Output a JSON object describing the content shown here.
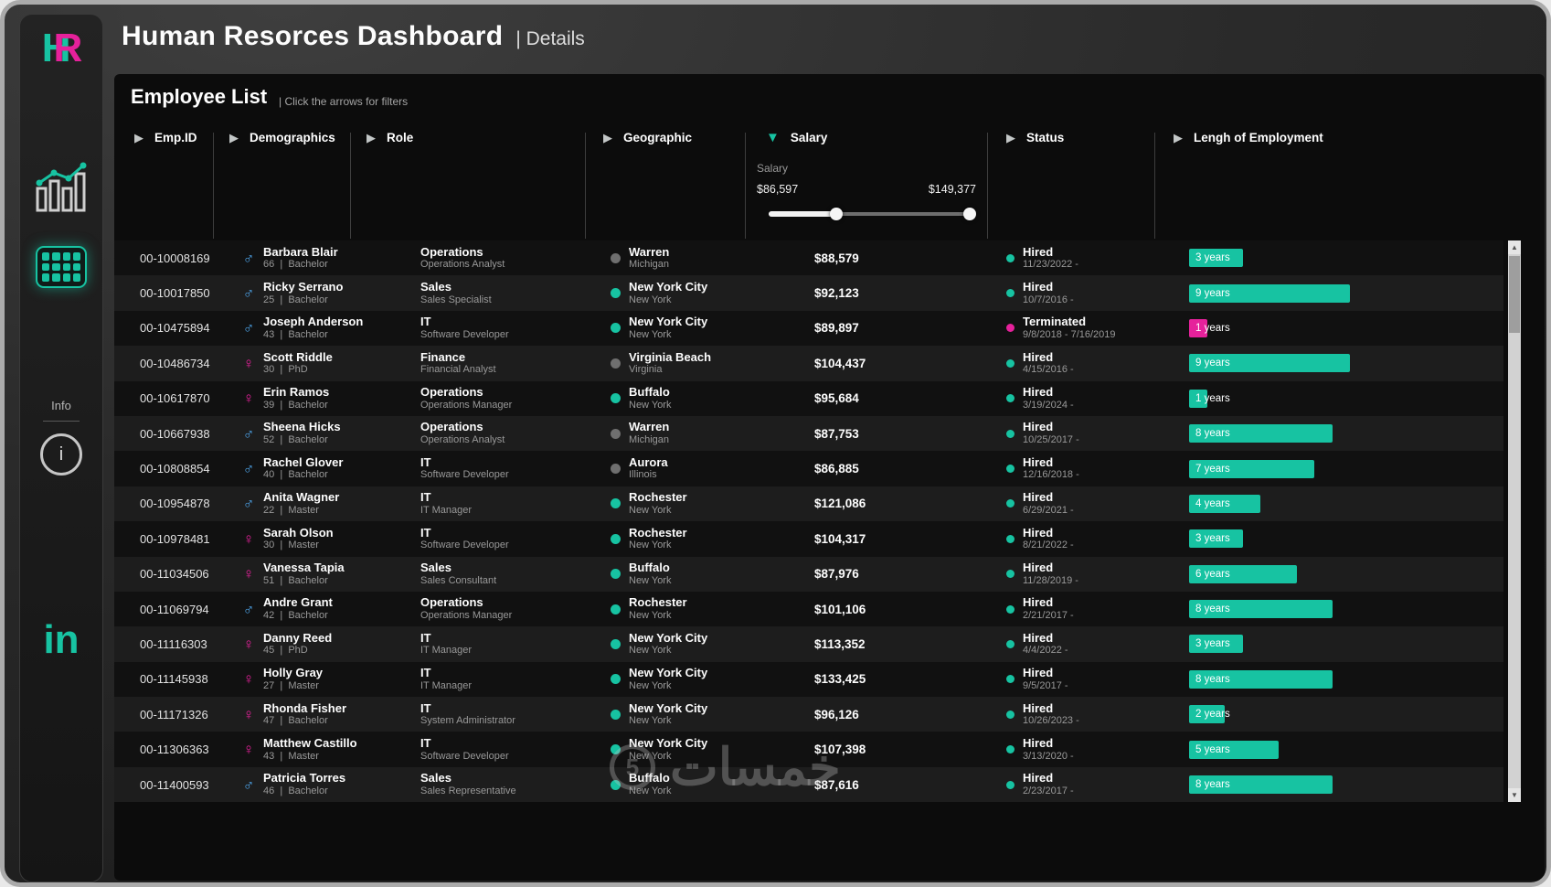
{
  "header": {
    "title": "Human Resorces Dashboard",
    "subtitle": "| Details"
  },
  "sidebar": {
    "logo_h": "H",
    "logo_r": "R",
    "info_label": "Info",
    "linkedin_label": "in"
  },
  "panel": {
    "title": "Employee List",
    "subtitle": "|  Click the arrows for filters"
  },
  "filters": {
    "items": [
      {
        "label": "Emp.ID"
      },
      {
        "label": "Demographics"
      },
      {
        "label": "Role"
      },
      {
        "label": "Geographic"
      },
      {
        "label": "Salary"
      },
      {
        "label": "Status"
      },
      {
        "label": "Lengh of Employment"
      }
    ],
    "salary_panel": {
      "label": "Salary",
      "min": "$86,597",
      "max": "$149,377"
    }
  },
  "icons": {
    "collapsed_arrow": "▶",
    "expanded_arrow": "▼",
    "male": "♂",
    "female": "♀",
    "scroll_up": "▲",
    "scroll_down": "▼",
    "info": "i"
  },
  "table": {
    "rows": [
      {
        "id": "00-10008169",
        "gender": "male",
        "name": "Barbara Blair",
        "meta": "66  |  Bachelor",
        "dept": "Operations",
        "role": "Operations Analyst",
        "city": "Warren",
        "state": "Michigan",
        "geo": "gray",
        "salary": "$88,579",
        "status": "Hired",
        "dates": "11/23/2022 -",
        "years": 3,
        "tenure": "3 years"
      },
      {
        "id": "00-10017850",
        "gender": "male",
        "name": "Ricky Serrano",
        "meta": "25  |  Bachelor",
        "dept": "Sales",
        "role": "Sales Specialist",
        "city": "New York City",
        "state": "New York",
        "geo": "teal",
        "salary": "$92,123",
        "status": "Hired",
        "dates": "10/7/2016 -",
        "years": 9,
        "tenure": "9 years"
      },
      {
        "id": "00-10475894",
        "gender": "male",
        "name": "Joseph Anderson",
        "meta": "43  |  Bachelor",
        "dept": "IT",
        "role": "Software Developer",
        "city": "New York City",
        "state": "New York",
        "geo": "teal",
        "salary": "$89,897",
        "status": "Terminated",
        "dates": "9/8/2018 - 7/16/2019",
        "years": 1,
        "tenure": "1 years"
      },
      {
        "id": "00-10486734",
        "gender": "female",
        "name": "Scott Riddle",
        "meta": "30  |  PhD",
        "dept": "Finance",
        "role": "Financial Analyst",
        "city": "Virginia Beach",
        "state": "Virginia",
        "geo": "gray",
        "salary": "$104,437",
        "status": "Hired",
        "dates": "4/15/2016 -",
        "years": 9,
        "tenure": "9 years"
      },
      {
        "id": "00-10617870",
        "gender": "female",
        "name": "Erin Ramos",
        "meta": "39  |  Bachelor",
        "dept": "Operations",
        "role": "Operations Manager",
        "city": "Buffalo",
        "state": "New York",
        "geo": "teal",
        "salary": "$95,684",
        "status": "Hired",
        "dates": "3/19/2024 -",
        "years": 1,
        "tenure": "1 years"
      },
      {
        "id": "00-10667938",
        "gender": "male",
        "name": "Sheena Hicks",
        "meta": "52  |  Bachelor",
        "dept": "Operations",
        "role": "Operations Analyst",
        "city": "Warren",
        "state": "Michigan",
        "geo": "gray",
        "salary": "$87,753",
        "status": "Hired",
        "dates": "10/25/2017 -",
        "years": 8,
        "tenure": "8 years"
      },
      {
        "id": "00-10808854",
        "gender": "male",
        "name": "Rachel Glover",
        "meta": "40  |  Bachelor",
        "dept": "IT",
        "role": "Software Developer",
        "city": "Aurora",
        "state": "Illinois",
        "geo": "gray",
        "salary": "$86,885",
        "status": "Hired",
        "dates": "12/16/2018 -",
        "years": 7,
        "tenure": "7 years"
      },
      {
        "id": "00-10954878",
        "gender": "male",
        "name": "Anita Wagner",
        "meta": "22  |  Master",
        "dept": "IT",
        "role": "IT Manager",
        "city": "Rochester",
        "state": "New York",
        "geo": "teal",
        "salary": "$121,086",
        "status": "Hired",
        "dates": "6/29/2021 -",
        "years": 4,
        "tenure": "4 years"
      },
      {
        "id": "00-10978481",
        "gender": "female",
        "name": "Sarah Olson",
        "meta": "30  |  Master",
        "dept": "IT",
        "role": "Software Developer",
        "city": "Rochester",
        "state": "New York",
        "geo": "teal",
        "salary": "$104,317",
        "status": "Hired",
        "dates": "8/21/2022 -",
        "years": 3,
        "tenure": "3 years"
      },
      {
        "id": "00-11034506",
        "gender": "female",
        "name": "Vanessa Tapia",
        "meta": "51  |  Bachelor",
        "dept": "Sales",
        "role": "Sales Consultant",
        "city": "Buffalo",
        "state": "New York",
        "geo": "teal",
        "salary": "$87,976",
        "status": "Hired",
        "dates": "11/28/2019 -",
        "years": 6,
        "tenure": "6 years"
      },
      {
        "id": "00-11069794",
        "gender": "male",
        "name": "Andre Grant",
        "meta": "42  |  Bachelor",
        "dept": "Operations",
        "role": "Operations Manager",
        "city": "Rochester",
        "state": "New York",
        "geo": "teal",
        "salary": "$101,106",
        "status": "Hired",
        "dates": "2/21/2017 -",
        "years": 8,
        "tenure": "8 years"
      },
      {
        "id": "00-11116303",
        "gender": "female",
        "name": "Danny Reed",
        "meta": "45  |  PhD",
        "dept": "IT",
        "role": "IT Manager",
        "city": "New York City",
        "state": "New York",
        "geo": "teal",
        "salary": "$113,352",
        "status": "Hired",
        "dates": "4/4/2022 -",
        "years": 3,
        "tenure": "3 years"
      },
      {
        "id": "00-11145938",
        "gender": "female",
        "name": "Holly Gray",
        "meta": "27  |  Master",
        "dept": "IT",
        "role": "IT Manager",
        "city": "New York City",
        "state": "New York",
        "geo": "teal",
        "salary": "$133,425",
        "status": "Hired",
        "dates": "9/5/2017 -",
        "years": 8,
        "tenure": "8 years"
      },
      {
        "id": "00-11171326",
        "gender": "female",
        "name": "Rhonda Fisher",
        "meta": "47  |  Bachelor",
        "dept": "IT",
        "role": "System Administrator",
        "city": "New York City",
        "state": "New York",
        "geo": "teal",
        "salary": "$96,126",
        "status": "Hired",
        "dates": "10/26/2023 -",
        "years": 2,
        "tenure": "2 years"
      },
      {
        "id": "00-11306363",
        "gender": "female",
        "name": "Matthew Castillo",
        "meta": "43  |  Master",
        "dept": "IT",
        "role": "Software Developer",
        "city": "New York City",
        "state": "New York",
        "geo": "teal",
        "salary": "$107,398",
        "status": "Hired",
        "dates": "3/13/2020 -",
        "years": 5,
        "tenure": "5 years"
      },
      {
        "id": "00-11400593",
        "gender": "male",
        "name": "Patricia Torres",
        "meta": "46  |  Bachelor",
        "dept": "Sales",
        "role": "Sales Representative",
        "city": "Buffalo",
        "state": "New York",
        "geo": "teal",
        "salary": "$87,616",
        "status": "Hired",
        "dates": "2/23/2017 -",
        "years": 8,
        "tenure": "8 years"
      }
    ]
  },
  "watermark": {
    "badge": "5",
    "text": "خمسات"
  },
  "colors": {
    "accent_teal": "#17c3a2",
    "accent_pink": "#e6219b",
    "male_blue": "#4da3e8"
  }
}
